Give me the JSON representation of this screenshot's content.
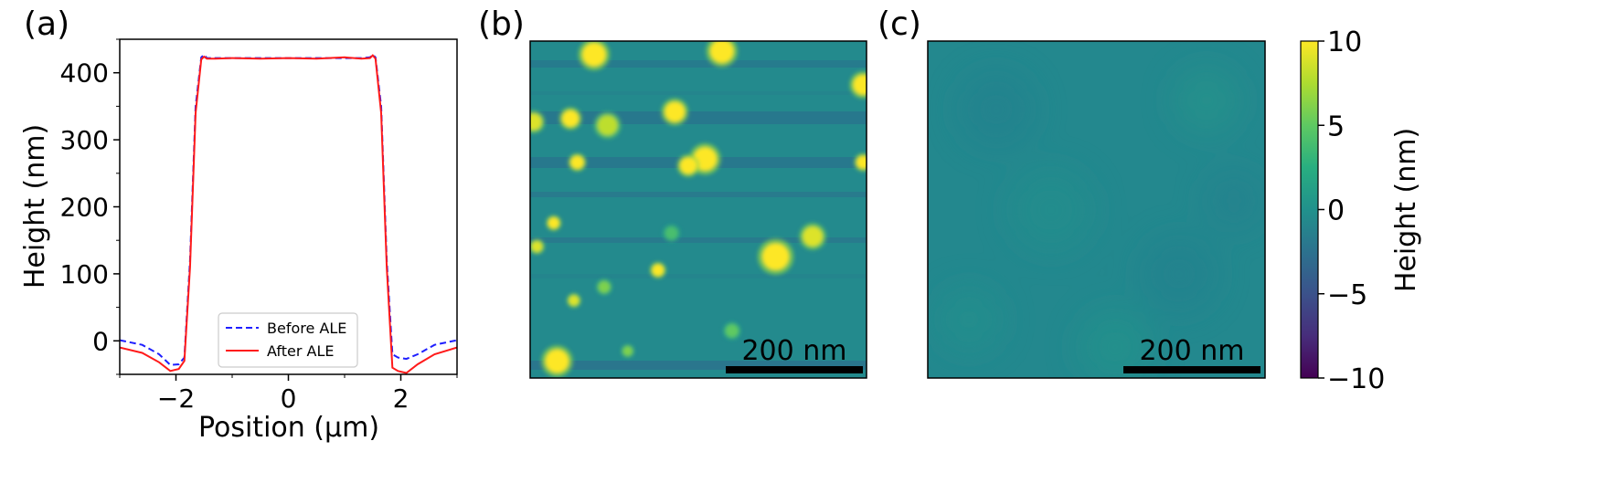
{
  "panels": {
    "a": {
      "label": "(a)"
    },
    "b": {
      "label": "(b)"
    },
    "c": {
      "label": "(c)"
    }
  },
  "chart_data": [
    {
      "type": "line",
      "xlabel": "Position (μm)",
      "ylabel": "Height (nm)",
      "xlim": [
        -3,
        3
      ],
      "ylim": [
        -50,
        450
      ],
      "xticks": [
        -2,
        0,
        2
      ],
      "xtick_labels": [
        "−2",
        "0",
        "2"
      ],
      "yticks": [
        0,
        100,
        200,
        300,
        400
      ],
      "ytick_labels": [
        "0",
        "100",
        "200",
        "300",
        "400"
      ],
      "legend_position": "lower-center",
      "series": [
        {
          "name": "Before ALE",
          "color": "#1f1fff",
          "style": "dashed",
          "x": [
            -3.0,
            -2.6,
            -2.3,
            -2.1,
            -1.95,
            -1.85,
            -1.75,
            -1.65,
            -1.55,
            -1.5,
            -1.45,
            -1.3,
            -1.0,
            -0.5,
            0.0,
            0.5,
            1.0,
            1.3,
            1.45,
            1.5,
            1.55,
            1.65,
            1.75,
            1.85,
            1.95,
            2.1,
            2.3,
            2.6,
            3.0
          ],
          "y": [
            1,
            -6,
            -20,
            -36,
            -35,
            -25,
            120,
            350,
            423,
            427,
            422,
            422,
            422,
            422,
            422,
            422,
            422,
            422,
            423,
            427,
            423,
            350,
            120,
            -20,
            -25,
            -27,
            -20,
            -6,
            1
          ]
        },
        {
          "name": "After ALE",
          "color": "#ff1a1a",
          "style": "solid",
          "x": [
            -3.0,
            -2.6,
            -2.3,
            -2.1,
            -1.95,
            -1.85,
            -1.75,
            -1.65,
            -1.55,
            -1.5,
            -1.45,
            -1.3,
            -1.0,
            -0.5,
            0.0,
            0.5,
            1.0,
            1.3,
            1.45,
            1.5,
            1.55,
            1.65,
            1.75,
            1.85,
            1.95,
            2.1,
            2.3,
            2.6,
            3.0
          ],
          "y": [
            -10,
            -18,
            -32,
            -45,
            -42,
            -30,
            110,
            340,
            420,
            424,
            421,
            421,
            422,
            421,
            422,
            421,
            423,
            421,
            422,
            426,
            421,
            340,
            110,
            -40,
            -45,
            -48,
            -35,
            -20,
            -10
          ]
        }
      ]
    },
    {
      "type": "heatmap",
      "description_key": "afm-before",
      "colormap": "viridis",
      "vmin": -10,
      "vmax": 10,
      "scalebar": "200 nm",
      "features": [
        {
          "x": 0.19,
          "y": 0.04,
          "r": 0.035,
          "h": 10
        },
        {
          "x": 0.57,
          "y": 0.03,
          "r": 0.035,
          "h": 10
        },
        {
          "x": 0.99,
          "y": 0.13,
          "r": 0.03,
          "h": 10
        },
        {
          "x": 0.01,
          "y": 0.24,
          "r": 0.025,
          "h": 9
        },
        {
          "x": 0.12,
          "y": 0.23,
          "r": 0.025,
          "h": 10
        },
        {
          "x": 0.23,
          "y": 0.25,
          "r": 0.03,
          "h": 8
        },
        {
          "x": 0.43,
          "y": 0.21,
          "r": 0.03,
          "h": 10
        },
        {
          "x": 0.14,
          "y": 0.36,
          "r": 0.02,
          "h": 10
        },
        {
          "x": 0.52,
          "y": 0.35,
          "r": 0.035,
          "h": 10
        },
        {
          "x": 0.47,
          "y": 0.37,
          "r": 0.025,
          "h": 10
        },
        {
          "x": 0.99,
          "y": 0.36,
          "r": 0.02,
          "h": 10
        },
        {
          "x": 0.07,
          "y": 0.54,
          "r": 0.017,
          "h": 10
        },
        {
          "x": 0.42,
          "y": 0.57,
          "r": 0.02,
          "h": 4
        },
        {
          "x": 0.84,
          "y": 0.58,
          "r": 0.03,
          "h": 9
        },
        {
          "x": 0.73,
          "y": 0.64,
          "r": 0.04,
          "h": 10
        },
        {
          "x": 0.02,
          "y": 0.61,
          "r": 0.017,
          "h": 9
        },
        {
          "x": 0.38,
          "y": 0.68,
          "r": 0.018,
          "h": 10
        },
        {
          "x": 0.13,
          "y": 0.77,
          "r": 0.016,
          "h": 9
        },
        {
          "x": 0.22,
          "y": 0.73,
          "r": 0.018,
          "h": 6
        },
        {
          "x": 0.08,
          "y": 0.95,
          "r": 0.035,
          "h": 10
        },
        {
          "x": 0.29,
          "y": 0.92,
          "r": 0.015,
          "h": 6
        },
        {
          "x": 0.6,
          "y": 0.86,
          "r": 0.02,
          "h": 5
        }
      ]
    },
    {
      "type": "heatmap",
      "description_key": "afm-after",
      "colormap": "viridis",
      "vmin": -10,
      "vmax": 10,
      "scalebar": "200 nm"
    }
  ],
  "colorbar": {
    "ticks": [
      10,
      5,
      0,
      -5,
      -10
    ],
    "tick_labels": [
      "10",
      "5",
      "0",
      "−5",
      "−10"
    ],
    "label": "Height (nm)",
    "vmin": -10,
    "vmax": 10
  }
}
